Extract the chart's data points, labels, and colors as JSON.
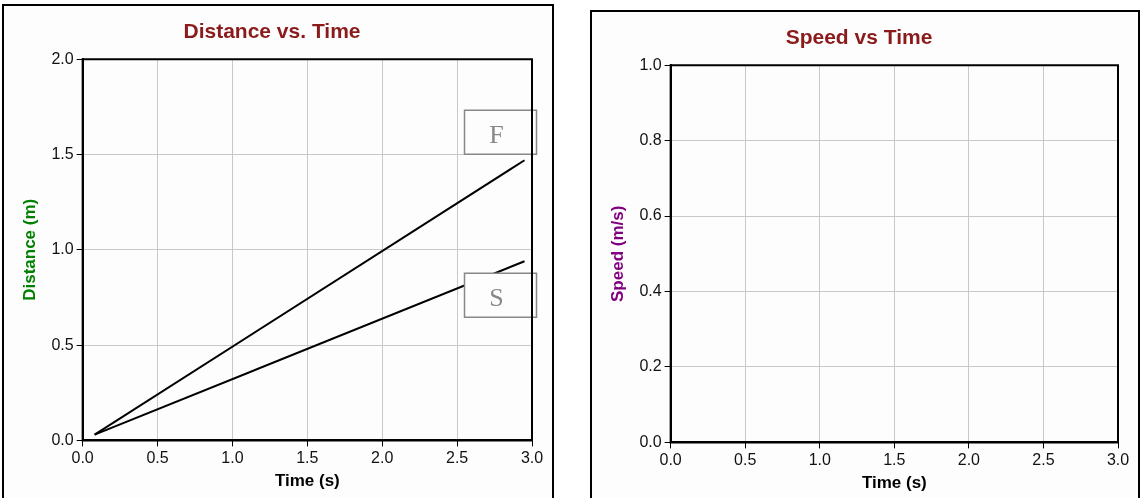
{
  "chart_data": [
    {
      "type": "line",
      "title": "Distance vs. Time",
      "xlabel": "Time (s)",
      "ylabel": "Distance (m)",
      "xlim": [
        0,
        3
      ],
      "ylim": [
        0,
        2
      ],
      "xticks": [
        {
          "value": 0,
          "label": "0.0"
        },
        0.5,
        {
          "value": 1,
          "label": "1.0"
        },
        1.5,
        {
          "value": 2,
          "label": "2.0"
        },
        2.5,
        {
          "value": 3,
          "label": "3.0"
        }
      ],
      "yticks": [
        {
          "value": 0,
          "label": "0.0"
        },
        0.5,
        {
          "value": 1,
          "label": "1.0"
        },
        1.5,
        {
          "value": 2,
          "label": "2.0"
        }
      ],
      "grid": true,
      "legend": false,
      "marker": "none",
      "line_style": "solid",
      "x": [
        0.08,
        2.95
      ],
      "series": [
        {
          "name": "F",
          "color": "#000000",
          "values": [
            0.03,
            1.47
          ]
        },
        {
          "name": "S",
          "color": "#000000",
          "values": [
            0.03,
            0.94
          ]
        }
      ]
    },
    {
      "type": "line",
      "title": "Speed vs Time",
      "xlabel": "Time (s)",
      "ylabel": "Speed (m/s)",
      "xlim": [
        0,
        3
      ],
      "ylim": [
        0,
        1
      ],
      "xticks": [
        {
          "value": 0,
          "label": "0.0"
        },
        0.5,
        {
          "value": 1,
          "label": "1.0"
        },
        1.5,
        {
          "value": 2,
          "label": "2.0"
        },
        2.5,
        {
          "value": 3,
          "label": "3.0"
        }
      ],
      "yticks": [
        {
          "value": 0,
          "label": "0.0"
        },
        0.2,
        0.4,
        0.6,
        0.8,
        {
          "value": 1,
          "label": "1.0"
        }
      ],
      "grid": true,
      "legend": false
    }
  ]
}
